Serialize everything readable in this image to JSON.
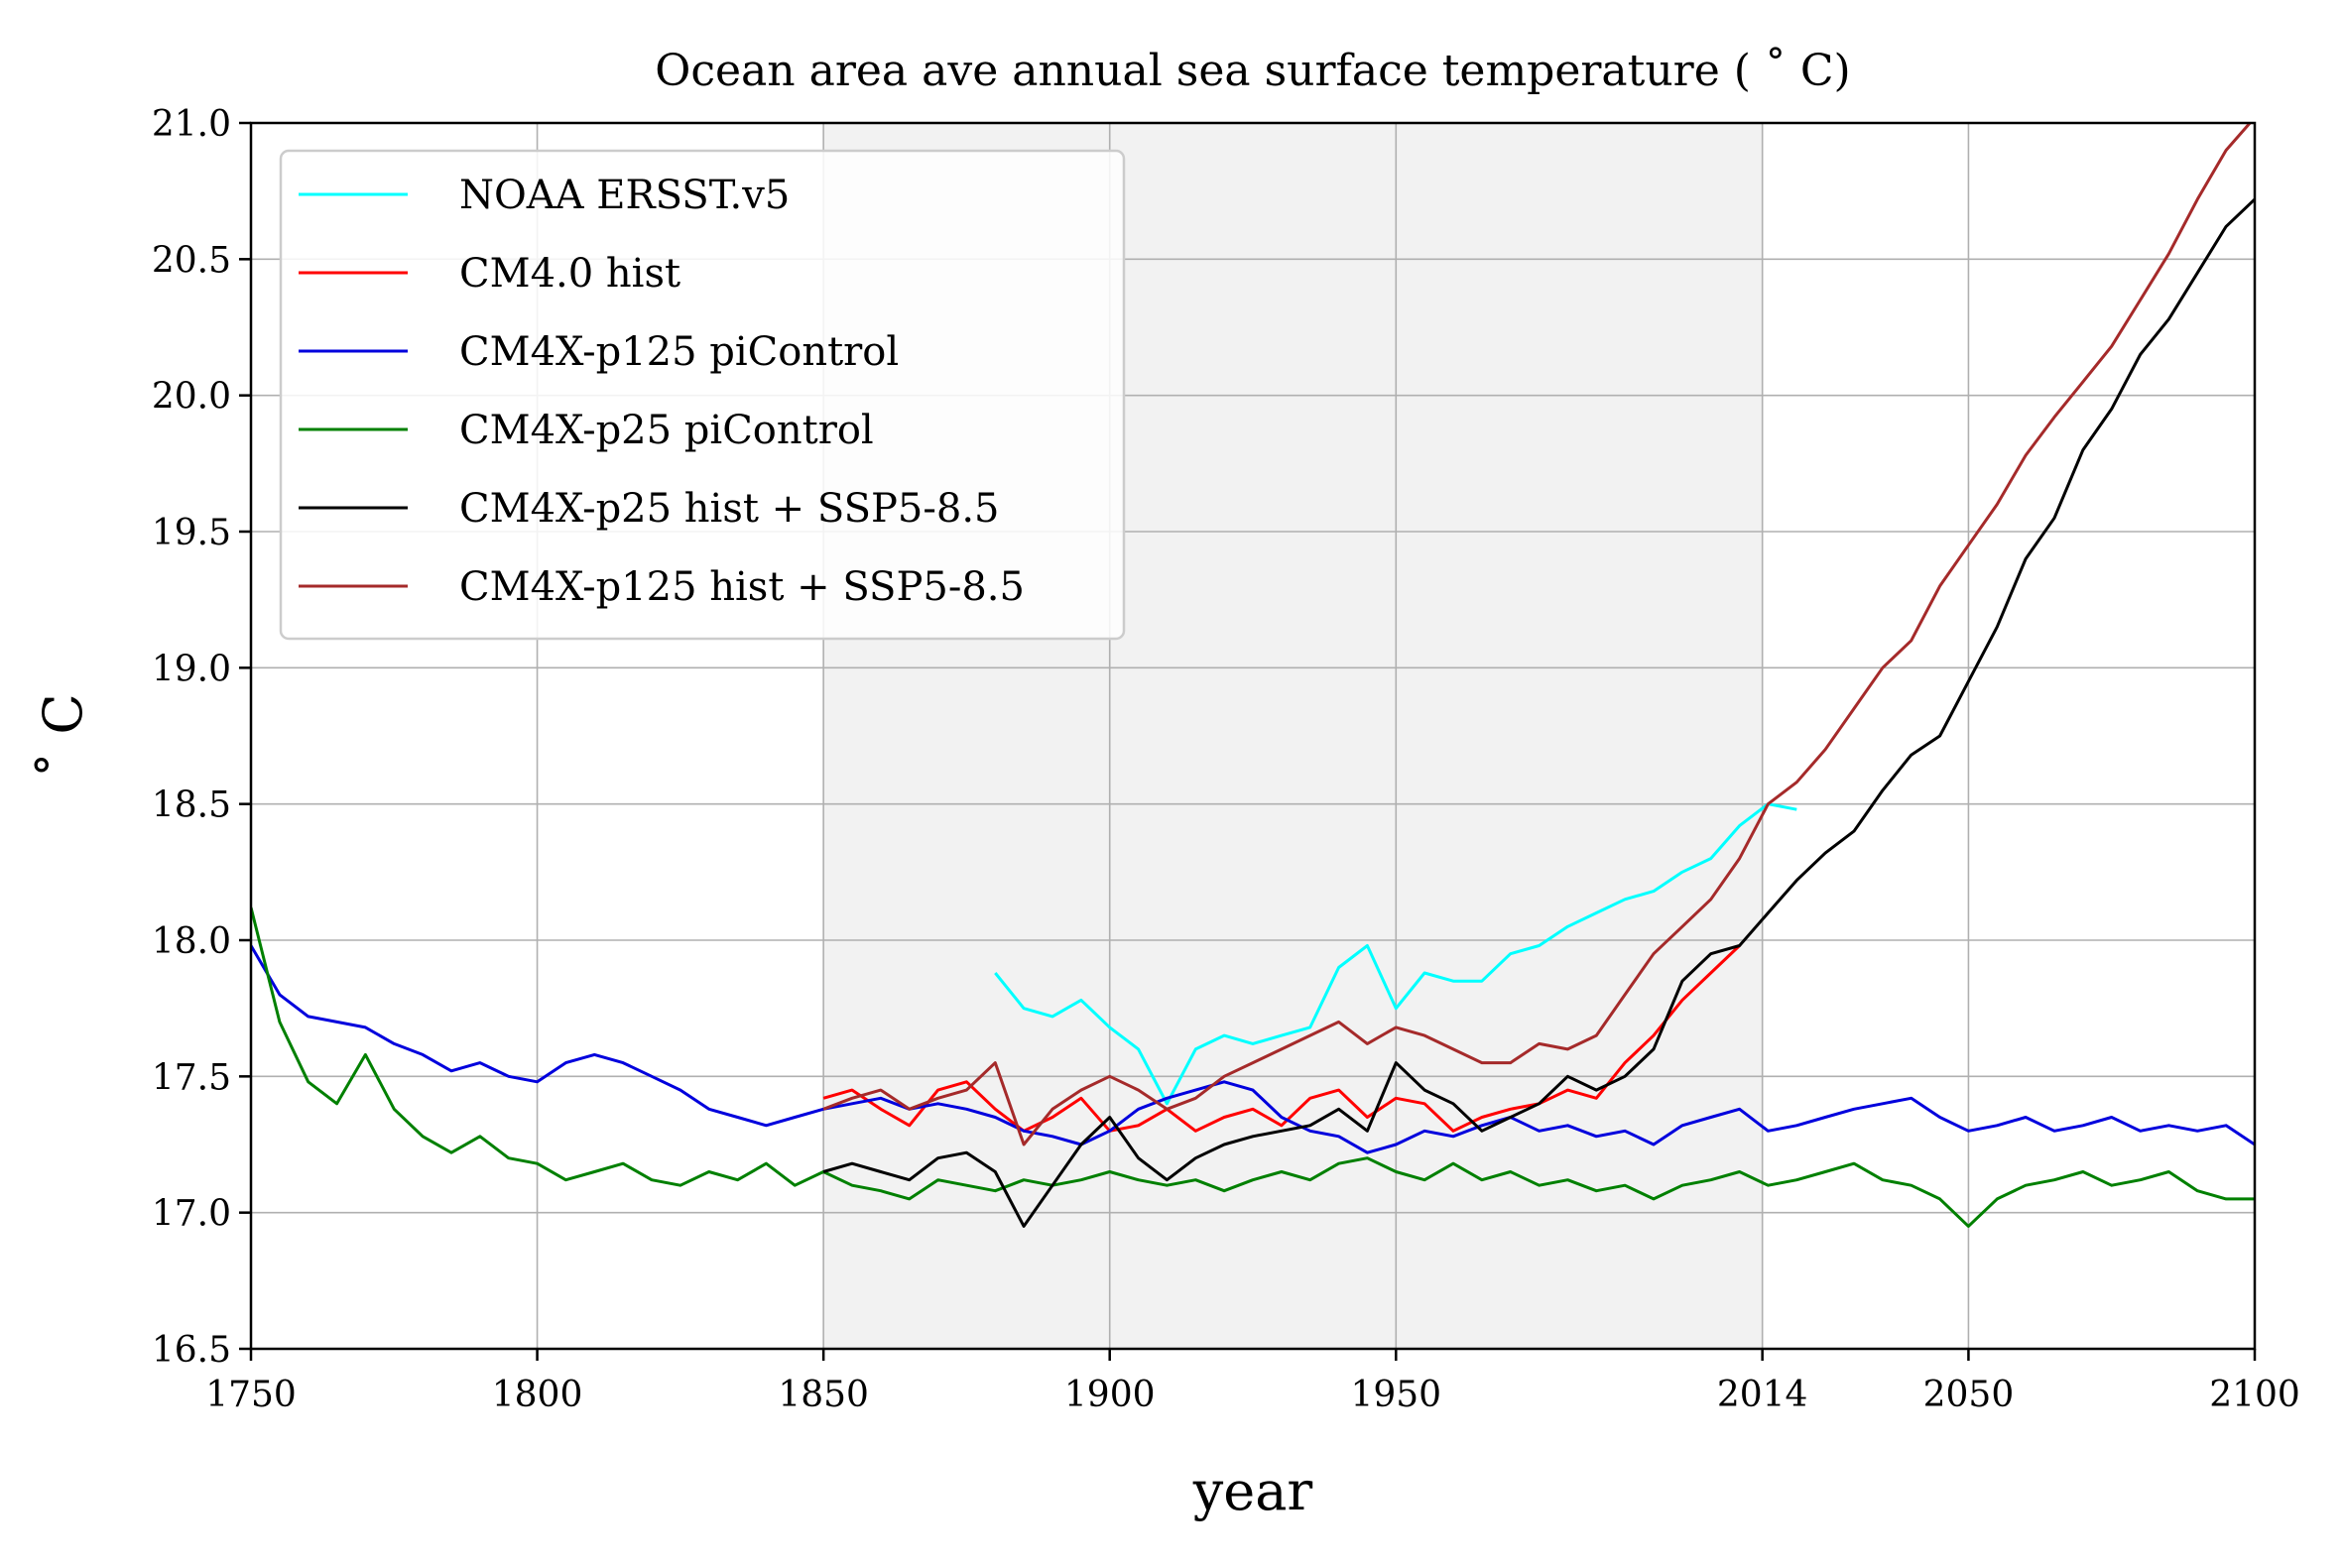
{
  "chart_data": {
    "type": "line",
    "title": "Ocean area ave annual sea surface temperature ( ˚ C)",
    "xlabel": "year",
    "ylabel": "˚ C",
    "xlim": [
      1750,
      2100
    ],
    "ylim": [
      16.5,
      21.0
    ],
    "xticks": [
      1750,
      1800,
      1850,
      1900,
      1950,
      2014,
      2050,
      2100
    ],
    "yticks": [
      16.5,
      17.0,
      17.5,
      18.0,
      18.5,
      19.0,
      19.5,
      20.0,
      20.5,
      21.0
    ],
    "x_tick_labels": [
      "1750",
      "1800",
      "1850",
      "1900",
      "1950",
      "2014",
      "2050",
      "2100"
    ],
    "y_tick_labels": [
      "16.5",
      "17.0",
      "17.5",
      "18.0",
      "18.5",
      "19.0",
      "19.5",
      "20.0",
      "20.5",
      "21.0"
    ],
    "grid": true,
    "legend_position": "upper-left",
    "shaded_region": {
      "x_start": 1850,
      "x_end": 2014,
      "color": "#f2f2f2"
    },
    "series": [
      {
        "name": "NOAA ERSST.v5",
        "color": "#00ffff",
        "x": [
          1880,
          1885,
          1890,
          1895,
          1900,
          1905,
          1910,
          1915,
          1920,
          1925,
          1930,
          1935,
          1940,
          1945,
          1950,
          1955,
          1960,
          1965,
          1970,
          1975,
          1980,
          1985,
          1990,
          1995,
          2000,
          2005,
          2010,
          2015,
          2020
        ],
        "y": [
          17.88,
          17.75,
          17.72,
          17.78,
          17.68,
          17.6,
          17.4,
          17.6,
          17.65,
          17.62,
          17.65,
          17.68,
          17.9,
          17.98,
          17.75,
          17.88,
          17.85,
          17.85,
          17.95,
          17.98,
          18.05,
          18.1,
          18.15,
          18.18,
          18.25,
          18.3,
          18.42,
          18.5,
          18.48
        ]
      },
      {
        "name": "CM4.0 hist",
        "color": "#ff0000",
        "x": [
          1850,
          1855,
          1860,
          1865,
          1870,
          1875,
          1880,
          1885,
          1890,
          1895,
          1900,
          1905,
          1910,
          1915,
          1920,
          1925,
          1930,
          1935,
          1940,
          1945,
          1950,
          1955,
          1960,
          1965,
          1970,
          1975,
          1980,
          1985,
          1990,
          1995,
          2000,
          2005,
          2010
        ],
        "y": [
          17.42,
          17.45,
          17.38,
          17.32,
          17.45,
          17.48,
          17.38,
          17.3,
          17.35,
          17.42,
          17.3,
          17.32,
          17.38,
          17.3,
          17.35,
          17.38,
          17.32,
          17.42,
          17.45,
          17.35,
          17.42,
          17.4,
          17.3,
          17.35,
          17.38,
          17.4,
          17.45,
          17.42,
          17.55,
          17.65,
          17.78,
          17.88,
          17.98
        ]
      },
      {
        "name": "CM4X-p125 piControl",
        "color": "#0000dd",
        "x": [
          1750,
          1755,
          1760,
          1765,
          1770,
          1775,
          1780,
          1785,
          1790,
          1795,
          1800,
          1805,
          1810,
          1815,
          1820,
          1825,
          1830,
          1835,
          1840,
          1845,
          1850,
          1855,
          1860,
          1865,
          1870,
          1875,
          1880,
          1885,
          1890,
          1895,
          1900,
          1905,
          1910,
          1915,
          1920,
          1925,
          1930,
          1935,
          1940,
          1945,
          1950,
          1955,
          1960,
          1965,
          1970,
          1975,
          1980,
          1985,
          1990,
          1995,
          2000,
          2005,
          2010,
          2015,
          2020,
          2025,
          2030,
          2035,
          2040,
          2045,
          2050,
          2055,
          2060,
          2065,
          2070,
          2075,
          2080,
          2085,
          2090,
          2095,
          2100
        ],
        "y": [
          17.98,
          17.8,
          17.72,
          17.7,
          17.68,
          17.62,
          17.58,
          17.52,
          17.55,
          17.5,
          17.48,
          17.55,
          17.58,
          17.55,
          17.5,
          17.45,
          17.38,
          17.35,
          17.32,
          17.35,
          17.38,
          17.4,
          17.42,
          17.38,
          17.4,
          17.38,
          17.35,
          17.3,
          17.28,
          17.25,
          17.3,
          17.38,
          17.42,
          17.45,
          17.48,
          17.45,
          17.35,
          17.3,
          17.28,
          17.22,
          17.25,
          17.3,
          17.28,
          17.32,
          17.35,
          17.3,
          17.32,
          17.28,
          17.3,
          17.25,
          17.32,
          17.35,
          17.38,
          17.3,
          17.32,
          17.35,
          17.38,
          17.4,
          17.42,
          17.35,
          17.3,
          17.32,
          17.35,
          17.3,
          17.32,
          17.35,
          17.3,
          17.32,
          17.3,
          17.32,
          17.25
        ]
      },
      {
        "name": "CM4X-p25 piControl",
        "color": "#008000",
        "x": [
          1750,
          1755,
          1760,
          1765,
          1770,
          1775,
          1780,
          1785,
          1790,
          1795,
          1800,
          1805,
          1810,
          1815,
          1820,
          1825,
          1830,
          1835,
          1840,
          1845,
          1850,
          1855,
          1860,
          1865,
          1870,
          1875,
          1880,
          1885,
          1890,
          1895,
          1900,
          1905,
          1910,
          1915,
          1920,
          1925,
          1930,
          1935,
          1940,
          1945,
          1950,
          1955,
          1960,
          1965,
          1970,
          1975,
          1980,
          1985,
          1990,
          1995,
          2000,
          2005,
          2010,
          2015,
          2020,
          2025,
          2030,
          2035,
          2040,
          2045,
          2050,
          2055,
          2060,
          2065,
          2070,
          2075,
          2080,
          2085,
          2090,
          2095,
          2100
        ],
        "y": [
          18.12,
          17.7,
          17.48,
          17.4,
          17.58,
          17.38,
          17.28,
          17.22,
          17.28,
          17.2,
          17.18,
          17.12,
          17.15,
          17.18,
          17.12,
          17.1,
          17.15,
          17.12,
          17.18,
          17.1,
          17.15,
          17.1,
          17.08,
          17.05,
          17.12,
          17.1,
          17.08,
          17.12,
          17.1,
          17.12,
          17.15,
          17.12,
          17.1,
          17.12,
          17.08,
          17.12,
          17.15,
          17.12,
          17.18,
          17.2,
          17.15,
          17.12,
          17.18,
          17.12,
          17.15,
          17.1,
          17.12,
          17.08,
          17.1,
          17.05,
          17.1,
          17.12,
          17.15,
          17.1,
          17.12,
          17.15,
          17.18,
          17.12,
          17.1,
          17.05,
          16.95,
          17.05,
          17.1,
          17.12,
          17.15,
          17.1,
          17.12,
          17.15,
          17.08,
          17.05,
          17.05
        ]
      },
      {
        "name": "CM4X-p25 hist + SSP5-8.5",
        "color": "#000000",
        "x": [
          1850,
          1855,
          1860,
          1865,
          1870,
          1875,
          1880,
          1885,
          1890,
          1895,
          1900,
          1905,
          1910,
          1915,
          1920,
          1925,
          1930,
          1935,
          1940,
          1945,
          1950,
          1955,
          1960,
          1965,
          1970,
          1975,
          1980,
          1985,
          1990,
          1995,
          2000,
          2005,
          2010,
          2015,
          2020,
          2025,
          2030,
          2035,
          2040,
          2045,
          2050,
          2055,
          2060,
          2065,
          2070,
          2075,
          2080,
          2085,
          2090,
          2095,
          2100
        ],
        "y": [
          17.15,
          17.18,
          17.15,
          17.12,
          17.2,
          17.22,
          17.15,
          16.95,
          17.1,
          17.25,
          17.35,
          17.2,
          17.12,
          17.2,
          17.25,
          17.28,
          17.3,
          17.32,
          17.38,
          17.3,
          17.55,
          17.45,
          17.4,
          17.3,
          17.35,
          17.4,
          17.5,
          17.45,
          17.5,
          17.6,
          17.85,
          17.95,
          17.98,
          18.1,
          18.22,
          18.32,
          18.4,
          18.55,
          18.68,
          18.75,
          18.95,
          19.15,
          19.4,
          19.55,
          19.8,
          19.95,
          20.15,
          20.28,
          20.45,
          20.62,
          20.72
        ]
      },
      {
        "name": "CM4X-p125 hist + SSP5-8.5",
        "color": "#a52a2a",
        "x": [
          1850,
          1855,
          1860,
          1865,
          1870,
          1875,
          1880,
          1885,
          1890,
          1895,
          1900,
          1905,
          1910,
          1915,
          1920,
          1925,
          1930,
          1935,
          1940,
          1945,
          1950,
          1955,
          1960,
          1965,
          1970,
          1975,
          1980,
          1985,
          1990,
          1995,
          2000,
          2005,
          2010,
          2015,
          2020,
          2025,
          2030,
          2035,
          2040,
          2045,
          2050,
          2055,
          2060,
          2065,
          2070,
          2075,
          2080,
          2085,
          2090,
          2095,
          2100
        ],
        "y": [
          17.38,
          17.42,
          17.45,
          17.38,
          17.42,
          17.45,
          17.55,
          17.25,
          17.38,
          17.45,
          17.5,
          17.45,
          17.38,
          17.42,
          17.5,
          17.55,
          17.6,
          17.65,
          17.7,
          17.62,
          17.68,
          17.65,
          17.6,
          17.55,
          17.55,
          17.62,
          17.6,
          17.65,
          17.8,
          17.95,
          18.05,
          18.15,
          18.3,
          18.5,
          18.58,
          18.7,
          18.85,
          19.0,
          19.1,
          19.3,
          19.45,
          19.6,
          19.78,
          19.92,
          20.05,
          20.18,
          20.35,
          20.52,
          20.72,
          20.9,
          21.02
        ]
      }
    ]
  }
}
